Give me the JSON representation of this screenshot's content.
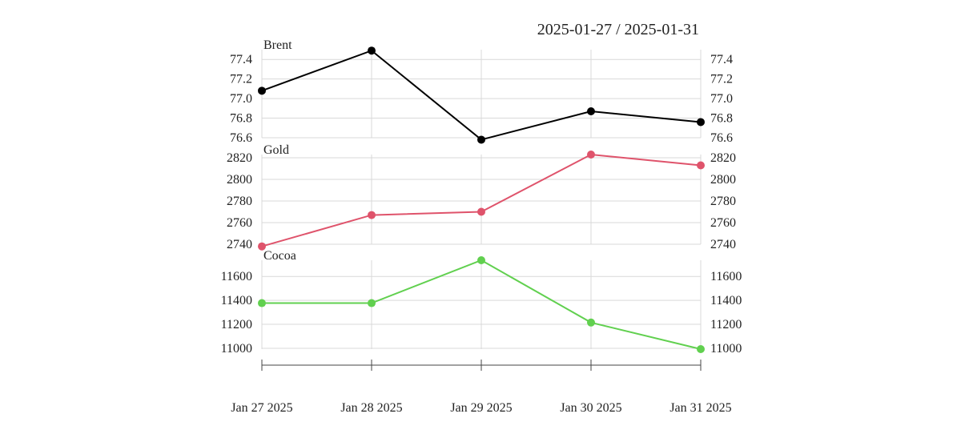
{
  "date_range": "2025-01-27 / 2025-01-31",
  "chart_data": [
    {
      "type": "line",
      "name": "Brent",
      "color": "#000000",
      "categories": [
        "Jan 27 2025",
        "Jan 28 2025",
        "Jan 29 2025",
        "Jan 30 2025",
        "Jan 31 2025"
      ],
      "values": [
        77.08,
        77.49,
        76.58,
        76.87,
        76.76
      ],
      "ylim": [
        76.6,
        77.5
      ],
      "yticks": [
        "77.4",
        "77.2",
        "77.0",
        "76.8",
        "76.6"
      ],
      "ytick_values": [
        77.4,
        77.2,
        77.0,
        76.8,
        76.6
      ]
    },
    {
      "type": "line",
      "name": "Gold",
      "color": "#df536b",
      "categories": [
        "Jan 27 2025",
        "Jan 28 2025",
        "Jan 29 2025",
        "Jan 30 2025",
        "Jan 31 2025"
      ],
      "values": [
        2738,
        2767,
        2770,
        2823,
        2813
      ],
      "ylim": [
        2740,
        2823
      ],
      "yticks": [
        "2820",
        "2800",
        "2780",
        "2760",
        "2740"
      ],
      "ytick_values": [
        2820,
        2800,
        2780,
        2760,
        2740
      ]
    },
    {
      "type": "line",
      "name": "Cocoa",
      "color": "#61d04f",
      "categories": [
        "Jan 27 2025",
        "Jan 28 2025",
        "Jan 29 2025",
        "Jan 30 2025",
        "Jan 31 2025"
      ],
      "values": [
        11377,
        11377,
        11735,
        11215,
        10993
      ],
      "ylim": [
        10993,
        11735
      ],
      "yticks": [
        "11600",
        "11400",
        "11200",
        "11000"
      ],
      "ytick_values": [
        11600,
        11400,
        11200,
        11000
      ]
    }
  ],
  "x_axis": {
    "labels": [
      "Jan 27 2025",
      "Jan 28 2025",
      "Jan 29 2025",
      "Jan 30 2025",
      "Jan 31 2025"
    ]
  }
}
